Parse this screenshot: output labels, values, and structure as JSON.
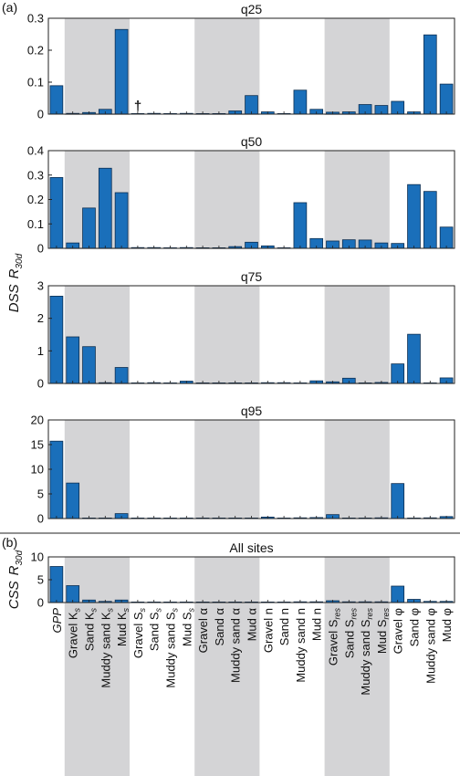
{
  "panel_labels": {
    "a": "(a)",
    "b": "(b)"
  },
  "dss_ylabel": "DSS",
  "dss_ylabel_sub": "R",
  "dss_ylabel_subscript": "30d",
  "css_ylabel": "CSS",
  "css_ylabel_sub": "R",
  "css_ylabel_subscript": "30d",
  "dagger": "†",
  "colors": {
    "bar": "#1a6fba",
    "bar_edge": "#0d2f52",
    "shade": "#d4d4d6",
    "axis": "#222222"
  },
  "shaded_category_groups": [
    [
      1,
      4
    ],
    [
      9,
      12
    ],
    [
      17,
      20
    ]
  ],
  "chart_data": [
    {
      "type": "bar",
      "title": "q25",
      "ylim": [
        0,
        0.3
      ],
      "yticks": [
        "0",
        "0.1",
        "0.2",
        "0.3"
      ],
      "ytick_values": [
        0,
        0.1,
        0.2,
        0.3
      ],
      "values": [
        0.089,
        0.002,
        0.005,
        0.015,
        0.265,
        0.0,
        0.002,
        0.0,
        0.001,
        0.0,
        0.0,
        0.01,
        0.058,
        0.007,
        0.0,
        0.075,
        0.015,
        0.006,
        0.007,
        0.03,
        0.027,
        0.04,
        0.007,
        0.248,
        0.094
      ]
    },
    {
      "type": "bar",
      "title": "q50",
      "ylim": [
        0,
        0.4
      ],
      "yticks": [
        "0",
        "0.1",
        "0.2",
        "0.3",
        "0.4"
      ],
      "ytick_values": [
        0,
        0.1,
        0.2,
        0.3,
        0.4
      ],
      "values": [
        0.29,
        0.022,
        0.165,
        0.328,
        0.228,
        0.002,
        0.001,
        0.0,
        0.002,
        0.0,
        0.0,
        0.007,
        0.025,
        0.01,
        0.0,
        0.187,
        0.04,
        0.03,
        0.035,
        0.034,
        0.022,
        0.02,
        0.261,
        0.233,
        0.087
      ]
    },
    {
      "type": "bar",
      "title": "q75",
      "ylim": [
        0,
        3
      ],
      "yticks": [
        "0",
        "1",
        "2",
        "3"
      ],
      "ytick_values": [
        0,
        1,
        2,
        3
      ],
      "values": [
        2.68,
        1.43,
        1.13,
        0.02,
        0.49,
        0.0,
        0.01,
        0.0,
        0.07,
        0.0,
        0.0,
        0.0,
        0.0,
        0.01,
        0.02,
        0.0,
        0.08,
        0.05,
        0.16,
        0.0,
        0.03,
        0.6,
        1.51,
        0.0,
        0.17
      ]
    },
    {
      "type": "bar",
      "title": "q95",
      "ylim": [
        0,
        20
      ],
      "yticks": [
        "0",
        "5",
        "10",
        "15",
        "20"
      ],
      "ytick_values": [
        0,
        5,
        10,
        15,
        20
      ],
      "values": [
        15.7,
        7.2,
        0.0,
        0.0,
        1.0,
        0.0,
        0.0,
        0.0,
        0.0,
        0.0,
        0.0,
        0.0,
        0.0,
        0.3,
        0.0,
        0.1,
        0.2,
        0.8,
        0.0,
        0.0,
        0.1,
        7.1,
        0.0,
        0.1,
        0.4
      ]
    },
    {
      "type": "bar",
      "title": "All sites",
      "ylim": [
        0,
        10
      ],
      "yticks": [
        "0",
        "5",
        "10"
      ],
      "ytick_values": [
        0,
        5,
        10
      ],
      "values": [
        7.9,
        3.7,
        0.55,
        0.25,
        0.55,
        0.0,
        0.0,
        0.0,
        0.0,
        0.0,
        0.0,
        0.0,
        0.0,
        0.0,
        0.0,
        0.05,
        0.1,
        0.4,
        0.05,
        0.05,
        0.05,
        3.6,
        0.7,
        0.25,
        0.25
      ]
    }
  ],
  "categories": [
    [
      "GPP",
      ""
    ],
    [
      "Gravel K",
      "s"
    ],
    [
      "Sand K",
      "s"
    ],
    [
      "Muddy sand K",
      "s"
    ],
    [
      "Mud K",
      "s"
    ],
    [
      "Gravel S",
      "s"
    ],
    [
      "Sand S",
      "s"
    ],
    [
      "Muddy sand S",
      "s"
    ],
    [
      "Mud S",
      "s"
    ],
    [
      "Gravel α",
      ""
    ],
    [
      "Sand α",
      ""
    ],
    [
      "Muddy sand α",
      ""
    ],
    [
      "Mud α",
      ""
    ],
    [
      "Gravel n",
      ""
    ],
    [
      "Sand n",
      ""
    ],
    [
      "Muddy sand n",
      ""
    ],
    [
      "Mud n",
      ""
    ],
    [
      "Gravel S",
      "res"
    ],
    [
      "Sand S",
      "res"
    ],
    [
      "Muddy sand S",
      "res"
    ],
    [
      "Mud S",
      "res"
    ],
    [
      "Gravel φ",
      ""
    ],
    [
      "Sand φ",
      ""
    ],
    [
      "Muddy sand φ",
      ""
    ],
    [
      "Mud φ",
      ""
    ]
  ]
}
